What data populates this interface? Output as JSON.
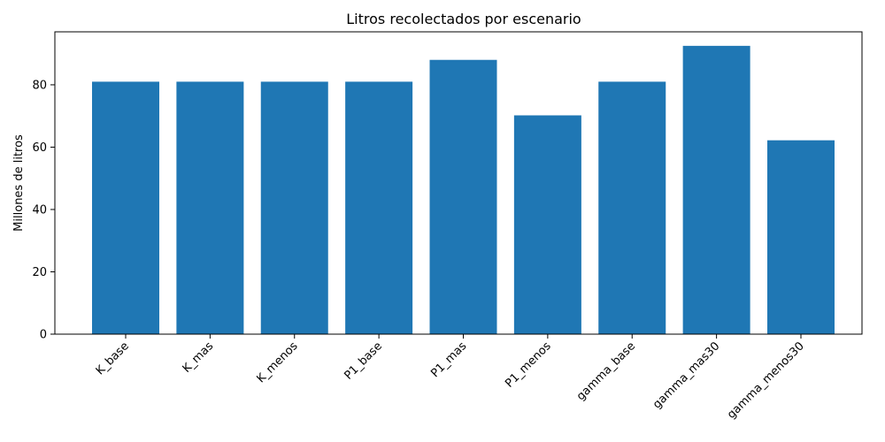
{
  "chart_data": {
    "type": "bar",
    "title": "Litros recolectados por escenario",
    "xlabel": "",
    "ylabel": "Millones de litros",
    "categories": [
      "K_base",
      "K_mas",
      "K_menos",
      "P1_base",
      "P1_mas",
      "P1_menos",
      "gamma_base",
      "gamma_mas30",
      "gamma_menos30"
    ],
    "values": [
      81.0,
      81.0,
      81.0,
      81.0,
      88.0,
      70.2,
      81.0,
      92.5,
      62.2
    ],
    "ylim": [
      0,
      97
    ],
    "yticks": [
      0,
      20,
      40,
      60,
      80
    ],
    "bar_color": "#1f77b4",
    "grid": false,
    "legend": "none"
  }
}
